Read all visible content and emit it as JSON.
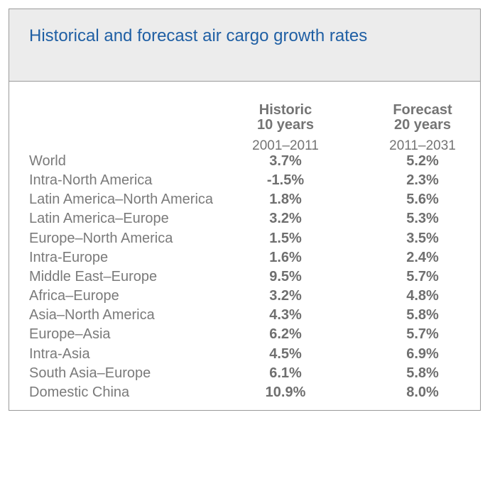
{
  "title": "Historical and forecast air cargo growth rates",
  "chart_data": {
    "type": "table",
    "title": "Historical and forecast air cargo growth rates",
    "columns": [
      {
        "label_line1": "Historic",
        "label_line2": "10 years",
        "period": "2001–2011"
      },
      {
        "label_line1": "Forecast",
        "label_line2": "20 years",
        "period": "2011–2031"
      }
    ],
    "rows": [
      {
        "region": "World",
        "historic": "3.7%",
        "forecast": "5.2%"
      },
      {
        "region": "Intra-North America",
        "historic": "-1.5%",
        "forecast": "2.3%"
      },
      {
        "region": "Latin America–North America",
        "historic": "1.8%",
        "forecast": "5.6%"
      },
      {
        "region": "Latin America–Europe",
        "historic": "3.2%",
        "forecast": "5.3%"
      },
      {
        "region": "Europe–North America",
        "historic": "1.5%",
        "forecast": "3.5%"
      },
      {
        "region": "Intra-Europe",
        "historic": "1.6%",
        "forecast": "2.4%"
      },
      {
        "region": "Middle East–Europe",
        "historic": "9.5%",
        "forecast": "5.7%"
      },
      {
        "region": "Africa–Europe",
        "historic": "3.2%",
        "forecast": "4.8%"
      },
      {
        "region": "Asia–North America",
        "historic": "4.3%",
        "forecast": "5.8%"
      },
      {
        "region": "Europe–Asia",
        "historic": "6.2%",
        "forecast": "5.7%"
      },
      {
        "region": "Intra-Asia",
        "historic": "4.5%",
        "forecast": "6.9%"
      },
      {
        "region": "South Asia–Europe",
        "historic": "6.1%",
        "forecast": "5.8%"
      },
      {
        "region": "Domestic China",
        "historic": "10.9%",
        "forecast": "8.0%"
      }
    ]
  },
  "colors": {
    "title": "#1f5fa4",
    "header_bg": "#ececec",
    "border": "#9a9a9a",
    "text": "#747474"
  }
}
